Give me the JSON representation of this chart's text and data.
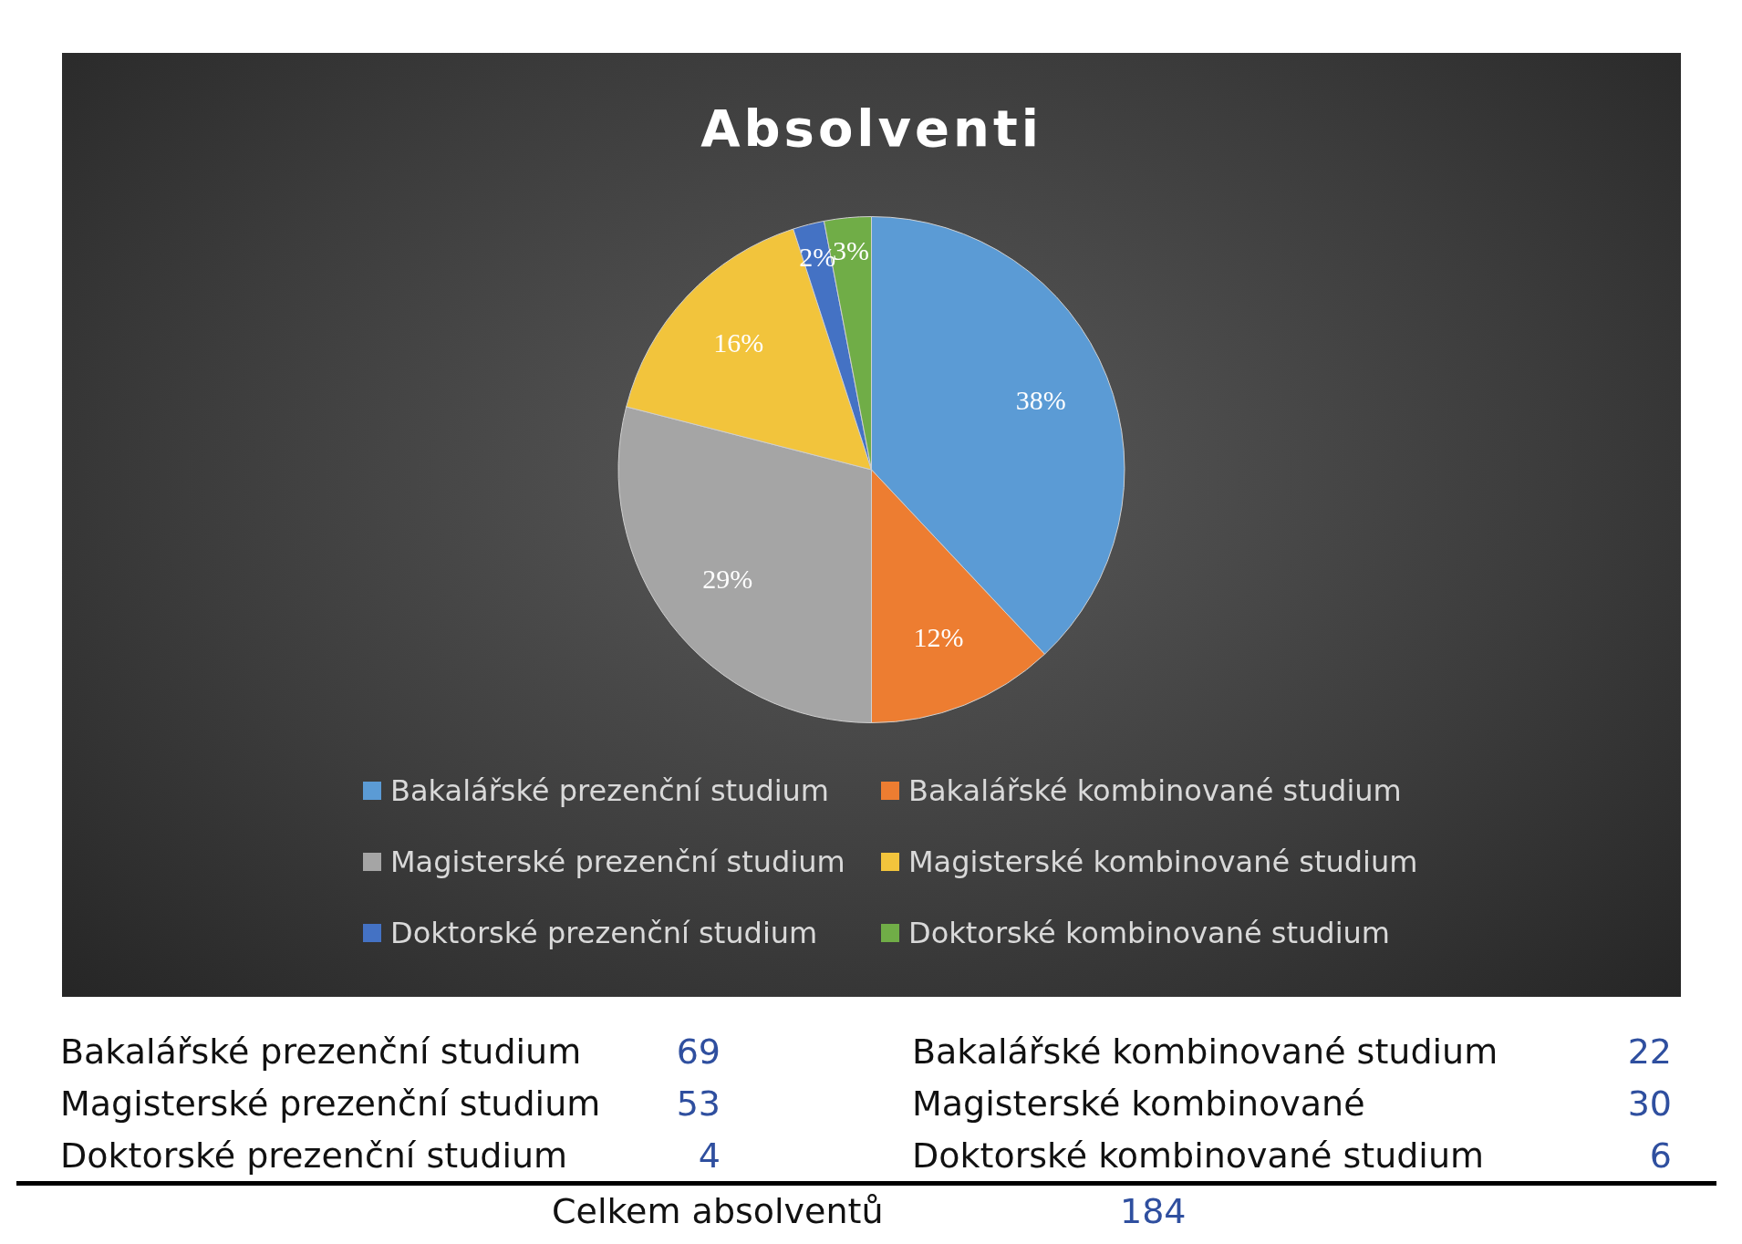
{
  "chart_data": {
    "type": "pie",
    "title": "Absolventi",
    "categories": [
      "Bakalářské prezenční studium",
      "Bakalářské kombinované studium",
      "Magisterské prezenční studium",
      "Magisterské kombinované studium",
      "Doktorské prezenční studium",
      "Doktorské kombinované studium"
    ],
    "values": [
      38,
      12,
      29,
      16,
      2,
      3
    ],
    "colors": [
      "#5b9bd5",
      "#ed7d31",
      "#a5a5a5",
      "#f2c43c",
      "#4472c4",
      "#70ad47"
    ],
    "value_labels": [
      "38%",
      "12%",
      "29%",
      "16%",
      "2%",
      "3%"
    ],
    "legend": "bottom",
    "annotations": [
      "Bakalářské prezenční studium",
      "69",
      "Bakalářské kombinované studium",
      "22",
      "Magisterské prezenční studium",
      "53",
      "Magisterské kombinované",
      "30",
      "Doktorské prezenční studium",
      "4",
      "Doktorské kombinované studium",
      "6",
      "Celkem absolventů",
      "184"
    ]
  }
}
